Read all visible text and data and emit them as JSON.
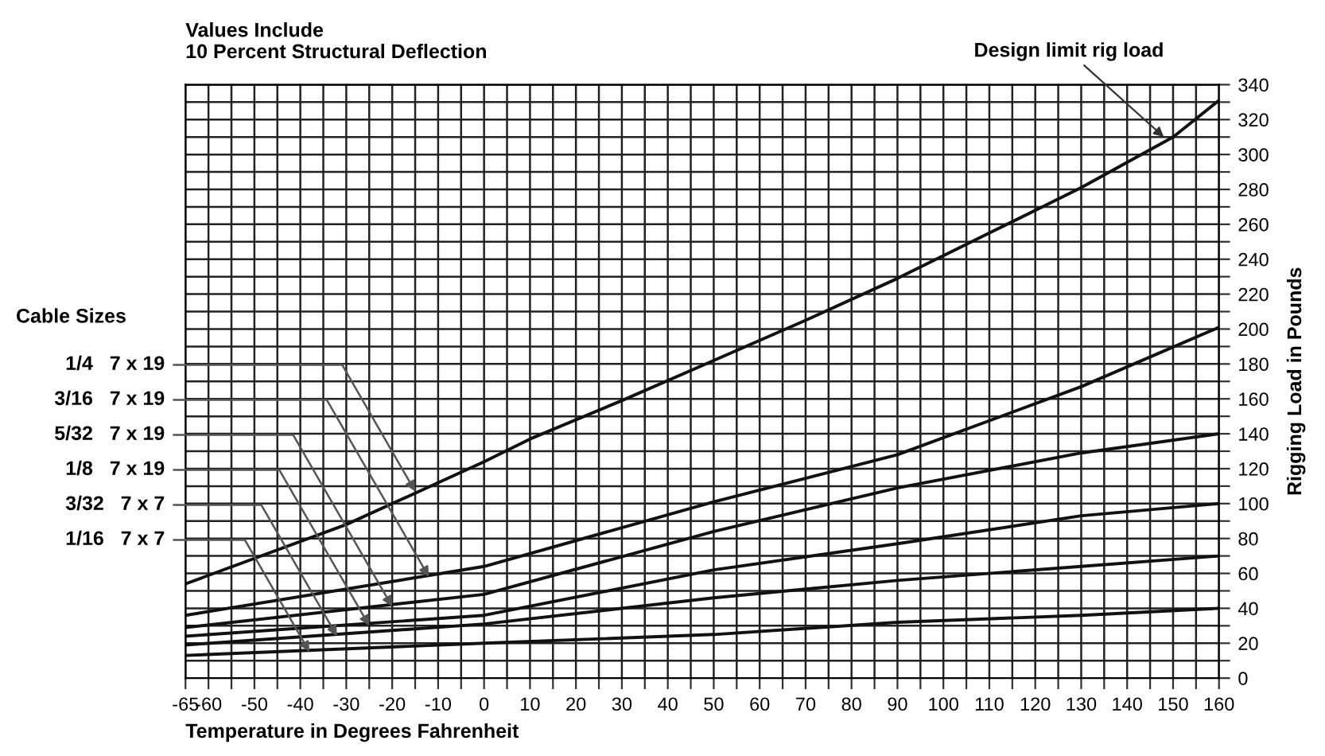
{
  "chart_data": {
    "type": "line",
    "title": "Values Include\n10 Percent Structural Deflection",
    "xlabel": "Temperature in Degrees Fahrenheit",
    "ylabel": "Rigging Load in Pounds",
    "xlim": [
      -65,
      160
    ],
    "ylim": [
      0,
      340
    ],
    "xticks": [
      -65,
      -60,
      {
        "value": -55,
        "label": null
      },
      -50,
      {
        "value": -45,
        "label": null
      },
      -40,
      {
        "value": -35,
        "label": null
      },
      -30,
      {
        "value": -25,
        "label": null
      },
      -20,
      {
        "value": -15,
        "label": null
      },
      -10,
      {
        "value": -5,
        "label": null
      },
      0,
      {
        "value": 5,
        "label": null
      },
      10,
      {
        "value": 15,
        "label": null
      },
      20,
      {
        "value": 25,
        "label": null
      },
      30,
      {
        "value": 35,
        "label": null
      },
      40,
      {
        "value": 45,
        "label": null
      },
      50,
      {
        "value": 55,
        "label": null
      },
      60,
      {
        "value": 65,
        "label": null
      },
      70,
      {
        "value": 75,
        "label": null
      },
      80,
      {
        "value": 85,
        "label": null
      },
      90,
      {
        "value": 95,
        "label": null
      },
      100,
      {
        "value": 105,
        "label": null
      },
      110,
      {
        "value": 115,
        "label": null
      },
      120,
      {
        "value": 125,
        "label": null
      },
      130,
      {
        "value": 135,
        "label": null
      },
      140,
      {
        "value": 145,
        "label": null
      },
      150,
      {
        "value": 155,
        "label": null
      },
      160
    ],
    "yticks": [
      0,
      {
        "value": 10,
        "label": null
      },
      20,
      {
        "value": 30,
        "label": null
      },
      40,
      {
        "value": 50,
        "label": null
      },
      60,
      {
        "value": 70,
        "label": null
      },
      80,
      {
        "value": 90,
        "label": null
      },
      100,
      {
        "value": 110,
        "label": null
      },
      120,
      {
        "value": 130,
        "label": null
      },
      140,
      {
        "value": 150,
        "label": null
      },
      160,
      {
        "value": 170,
        "label": null
      },
      180,
      {
        "value": 190,
        "label": null
      },
      200,
      {
        "value": 210,
        "label": null
      },
      220,
      {
        "value": 230,
        "label": null
      },
      240,
      {
        "value": 250,
        "label": null
      },
      260,
      {
        "value": 270,
        "label": null
      },
      280,
      {
        "value": 290,
        "label": null
      },
      300,
      {
        "value": 310,
        "label": null
      },
      320,
      {
        "value": 330,
        "label": null
      },
      340
    ],
    "grid": true,
    "marker": "none",
    "line_style": "solid",
    "series": [
      {
        "color": "#111111",
        "x": [
          -65,
          -30,
          0,
          10,
          30,
          50,
          70,
          90,
          110,
          130,
          150,
          160
        ],
        "values": [
          54,
          88,
          124,
          137,
          159,
          182,
          205,
          229,
          255,
          281,
          310,
          331
        ]
      },
      {
        "color": "#111111",
        "x": [
          -65,
          0,
          50,
          90,
          130,
          160
        ],
        "values": [
          36,
          64,
          101,
          128,
          167,
          201
        ]
      },
      {
        "color": "#111111",
        "x": [
          -65,
          0,
          50,
          90,
          130,
          160
        ],
        "values": [
          29,
          48,
          84,
          109,
          129,
          140
        ]
      },
      {
        "color": "#111111",
        "x": [
          -65,
          0,
          50,
          90,
          130,
          160
        ],
        "values": [
          24,
          36,
          62,
          77,
          93,
          100
        ]
      },
      {
        "color": "#111111",
        "x": [
          -65,
          0,
          50,
          90,
          130,
          160
        ],
        "values": [
          19,
          31,
          46,
          56,
          64,
          70
        ]
      },
      {
        "color": "#111111",
        "x": [
          -65,
          0,
          50,
          90,
          130,
          160
        ],
        "values": [
          13,
          20,
          25,
          32,
          36,
          40
        ]
      }
    ],
    "annotations": [
      "Cable Sizes",
      {
        "text": "1/4   7 x 19",
        "x": -15,
        "y": 107
      },
      {
        "text": "3/16   7 x 19",
        "x": -12,
        "y": 58
      },
      {
        "text": "5/32   7 x 19",
        "x": -20,
        "y": 41
      },
      {
        "text": "1/8   7 x 19",
        "x": -25,
        "y": 30
      },
      {
        "text": "3/32   7 x 7",
        "x": -32,
        "y": 24
      },
      {
        "text": "1/16   7 x 7",
        "x": -38,
        "y": 15
      },
      {
        "text": "Design limit rig load",
        "x": 148,
        "y": 310
      }
    ]
  }
}
